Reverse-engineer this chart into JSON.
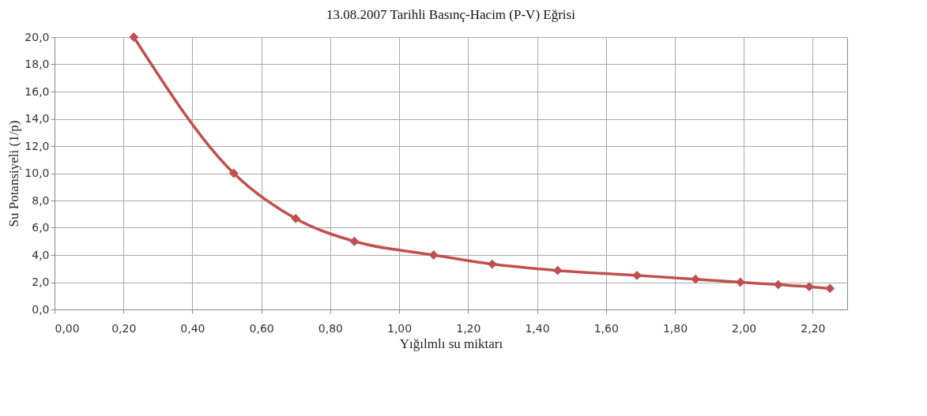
{
  "chart_data": {
    "type": "line",
    "title": "13.08.2007  Tarihli Basınç-Hacim  (P-V)  Eğrisi",
    "xlabel": "Yığılmlı su miktarı",
    "ylabel": "Su Potansiyeli (1/p)",
    "x": [
      0.23,
      0.52,
      0.7,
      0.87,
      1.1,
      1.27,
      1.46,
      1.69,
      1.86,
      1.99,
      2.1,
      2.19,
      2.25
    ],
    "series": [
      {
        "color": "#c0504d",
        "values": [
          20,
          10,
          6.67,
          5,
          4,
          3.33,
          2.86,
          2.5,
          2.22,
          2,
          1.82,
          1.67,
          1.54
        ]
      }
    ],
    "xlim": [
      0,
      2.3
    ],
    "xticks": [
      {
        "value": 0,
        "label": "0,00"
      },
      {
        "value": 0.2,
        "label": "0,20"
      },
      {
        "value": 0.4,
        "label": "0,40"
      },
      {
        "value": 0.6,
        "label": "0,60"
      },
      {
        "value": 0.8,
        "label": "0,80"
      },
      {
        "value": 1.0,
        "label": "1,00"
      },
      {
        "value": 1.2,
        "label": "1,20"
      },
      {
        "value": 1.4,
        "label": "1,40"
      },
      {
        "value": 1.6,
        "label": "1,60"
      },
      {
        "value": 1.8,
        "label": "1,80"
      },
      {
        "value": 2.0,
        "label": "2,00"
      },
      {
        "value": 2.2,
        "label": "2,20"
      }
    ],
    "ylim": [
      0,
      20
    ],
    "yticks": [
      {
        "value": 0,
        "label": "0,0"
      },
      {
        "value": 2,
        "label": "2,0"
      },
      {
        "value": 4,
        "label": "4,0"
      },
      {
        "value": 6,
        "label": "6,0"
      },
      {
        "value": 8,
        "label": "8,0"
      },
      {
        "value": 10,
        "label": "10,0"
      },
      {
        "value": 12,
        "label": "12,0"
      },
      {
        "value": 14,
        "label": "14,0"
      },
      {
        "value": 16,
        "label": "16,0"
      },
      {
        "value": 18,
        "label": "18,0"
      },
      {
        "value": 20,
        "label": "20,0"
      }
    ],
    "grid": true,
    "marker": "diamond",
    "line_style": "solid"
  }
}
